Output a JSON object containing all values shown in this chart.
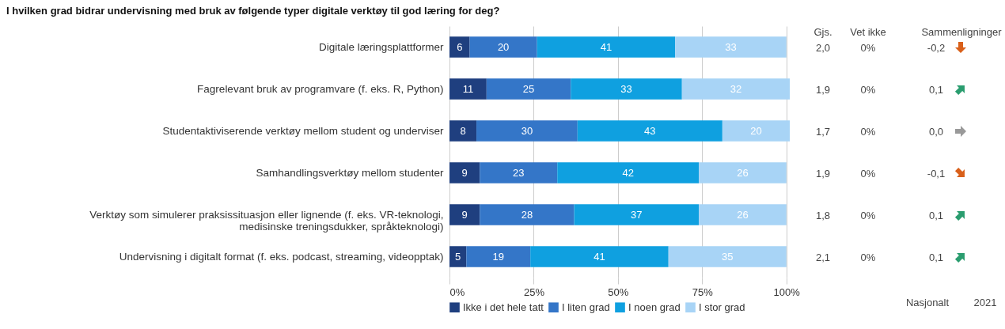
{
  "chart_data": {
    "type": "bar",
    "orientation": "horizontal",
    "stacked": true,
    "title": "I hvilken grad bidrar undervisning med bruk av følgende typer digitale verktøy til god læring for deg?",
    "categories": [
      "Digitale læringsplattformer",
      "Fagrelevant bruk av programvare (f. eks. R, Python)",
      "Studentaktiviserende verktøy mellom student og underviser",
      "Samhandlingsverktøy mellom studenter",
      "Verktøy som simulerer praksissituasjon eller lignende (f. eks. VR-teknologi, medisinske treningsdukker, språkteknologi)",
      "Undervisning i digitalt format (f. eks. podcast, streaming, videopptak)"
    ],
    "series": [
      {
        "name": "Ikke i det hele tatt",
        "color": "#1f3f7f",
        "values": [
          6,
          11,
          8,
          9,
          9,
          5
        ]
      },
      {
        "name": "I liten grad",
        "color": "#3476c8",
        "values": [
          20,
          25,
          30,
          23,
          28,
          19
        ]
      },
      {
        "name": "I noen grad",
        "color": "#0fa0e0",
        "values": [
          41,
          33,
          43,
          42,
          37,
          41
        ]
      },
      {
        "name": "I stor grad",
        "color": "#a8d4f6",
        "values": [
          33,
          32,
          20,
          26,
          26,
          35
        ]
      }
    ],
    "xlim": [
      0,
      101
    ],
    "xticks": [
      {
        "value": 0,
        "label": "0%"
      },
      {
        "value": 25,
        "label": "25%"
      },
      {
        "value": 50,
        "label": "50%"
      },
      {
        "value": 75,
        "label": "75%"
      },
      {
        "value": 100,
        "label": "100%"
      }
    ],
    "grid": "x",
    "legend": "bottom",
    "data_labels": true,
    "annotations": [
      "Gjs.",
      "Vet ikke",
      "Sammenligninger",
      "2,0",
      "0%",
      "-0,2",
      "1,9",
      "0%",
      "0,1",
      "1,7",
      "0%",
      "0,0",
      "1,9",
      "0%",
      "-0,1",
      "1,8",
      "0%",
      "0,1",
      "2,1",
      "0%",
      "0,1",
      "Nasjonalt",
      "2021"
    ]
  }
}
